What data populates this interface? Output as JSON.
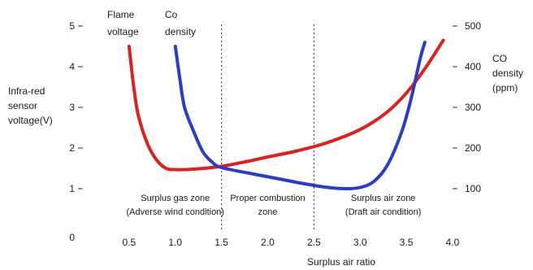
{
  "chart_data": {
    "type": "line",
    "xlabel": "Surplus air ratio",
    "ylabel_left": [
      "Infra-red",
      "sensor",
      "voltage(V)"
    ],
    "ylabel_right": [
      "CO",
      "density",
      "(ppm)"
    ],
    "x_ticks": [
      "0.5",
      "1.0",
      "1.5",
      "2.0",
      "2.5",
      "3.0",
      "3.5",
      "4.0"
    ],
    "x_tick_values": [
      0.5,
      1.0,
      1.5,
      2.0,
      2.5,
      3.0,
      3.5,
      4.0
    ],
    "y_left_ticks": [
      "0",
      "1",
      "2",
      "3",
      "4",
      "5"
    ],
    "y_left_tick_values": [
      0,
      1,
      2,
      3,
      4,
      5
    ],
    "y_right_ticks": [
      "100",
      "200",
      "300",
      "400",
      "500"
    ],
    "y_right_tick_values": [
      100,
      200,
      300,
      400,
      500
    ],
    "xlim": [
      0,
      4.0
    ],
    "ylim_left": [
      0,
      5
    ],
    "ylim_right": [
      0,
      500
    ],
    "zone_dividers": [
      1.5,
      2.5
    ],
    "zones": [
      {
        "lines": [
          "Surplus gas zone",
          "(Adverse wind condition)"
        ],
        "x_center": 1.0
      },
      {
        "lines": [
          "Proper combustion",
          "zone"
        ],
        "x_center": 2.0
      },
      {
        "lines": [
          "Surplus air zone",
          "(Draft air condition)"
        ],
        "x_center": 3.25
      }
    ],
    "series": [
      {
        "name": "Flame voltage",
        "label_lines": [
          "Flame",
          "voltage"
        ],
        "axis": "left",
        "color": "#e02020",
        "x": [
          0.5,
          0.55,
          0.6,
          0.7,
          0.8,
          0.9,
          1.0,
          1.2,
          1.5,
          1.8,
          2.0,
          2.3,
          2.6,
          2.9,
          3.1,
          3.3,
          3.5,
          3.7,
          3.9
        ],
        "y": [
          4.5,
          3.5,
          2.8,
          2.1,
          1.7,
          1.5,
          1.47,
          1.48,
          1.55,
          1.68,
          1.78,
          1.92,
          2.1,
          2.35,
          2.58,
          2.9,
          3.35,
          3.95,
          4.65
        ]
      },
      {
        "name": "Co density",
        "label_lines": [
          "Co",
          "density"
        ],
        "axis": "right",
        "color": "#2a3cc8",
        "x": [
          1.0,
          1.05,
          1.1,
          1.2,
          1.3,
          1.4,
          1.5,
          1.8,
          2.1,
          2.4,
          2.65,
          2.85,
          3.0,
          3.15,
          3.3,
          3.45,
          3.55,
          3.65,
          3.7
        ],
        "y": [
          450,
          370,
          300,
          240,
          190,
          165,
          152,
          138,
          125,
          112,
          103,
          100,
          103,
          118,
          160,
          240,
          320,
          420,
          460
        ]
      }
    ]
  }
}
